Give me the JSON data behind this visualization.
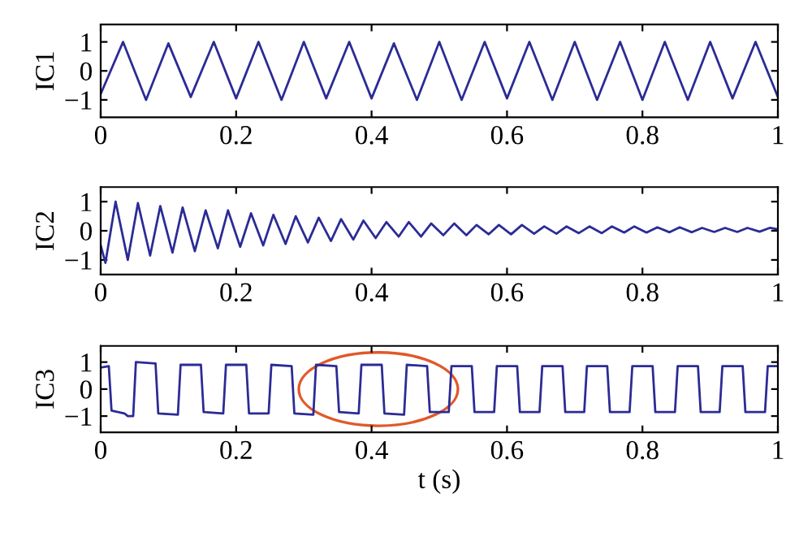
{
  "chart_data": [
    {
      "type": "line",
      "ylabel": "IC1",
      "xlim": [
        0,
        1
      ],
      "ylim": [
        -1.6,
        1.6
      ],
      "xticks": [
        0,
        0.2,
        0.4,
        0.6,
        0.8,
        1
      ],
      "yticks": [
        -1,
        0,
        1
      ],
      "grid": false,
      "line_style": "solid",
      "series": [
        {
          "color": "#2b2b96",
          "x": [
            0,
            0.033,
            0.067,
            0.1,
            0.133,
            0.167,
            0.2,
            0.233,
            0.267,
            0.3,
            0.333,
            0.367,
            0.4,
            0.433,
            0.467,
            0.5,
            0.533,
            0.567,
            0.6,
            0.633,
            0.667,
            0.7,
            0.733,
            0.767,
            0.8,
            0.833,
            0.867,
            0.9,
            0.933,
            0.967,
            1.0
          ],
          "values": [
            -0.8,
            1.0,
            -1.0,
            0.95,
            -0.9,
            1.0,
            -0.95,
            1.0,
            -1.0,
            1.0,
            -0.95,
            1.0,
            -0.95,
            0.95,
            -1.0,
            1.0,
            -1.0,
            1.0,
            -0.95,
            1.0,
            -1.0,
            1.0,
            -1.0,
            1.0,
            -1.0,
            1.0,
            -1.0,
            1.0,
            -0.95,
            1.0,
            -0.9
          ]
        }
      ]
    },
    {
      "type": "line",
      "ylabel": "IC2",
      "xlim": [
        0,
        1
      ],
      "ylim": [
        -1.5,
        1.5
      ],
      "xticks": [
        0,
        0.2,
        0.4,
        0.6,
        0.8,
        1
      ],
      "yticks": [
        -1,
        0,
        1
      ],
      "grid": false,
      "line_style": "solid",
      "series": [
        {
          "color": "#2b2b96",
          "x": [
            0,
            0.007,
            0.022,
            0.04,
            0.055,
            0.073,
            0.088,
            0.106,
            0.121,
            0.139,
            0.155,
            0.173,
            0.188,
            0.206,
            0.222,
            0.24,
            0.255,
            0.273,
            0.288,
            0.306,
            0.322,
            0.34,
            0.355,
            0.373,
            0.388,
            0.406,
            0.422,
            0.44,
            0.455,
            0.473,
            0.488,
            0.506,
            0.522,
            0.54,
            0.555,
            0.573,
            0.588,
            0.606,
            0.622,
            0.64,
            0.655,
            0.673,
            0.688,
            0.706,
            0.722,
            0.74,
            0.755,
            0.773,
            0.788,
            0.806,
            0.822,
            0.84,
            0.855,
            0.873,
            0.888,
            0.906,
            0.922,
            0.94,
            0.955,
            0.973,
            0.988,
            1.0
          ],
          "values": [
            -0.5,
            -1.1,
            1.0,
            -1.0,
            0.95,
            -0.85,
            0.85,
            -0.75,
            0.8,
            -0.7,
            0.7,
            -0.6,
            0.7,
            -0.55,
            0.6,
            -0.5,
            0.55,
            -0.45,
            0.5,
            -0.4,
            0.45,
            -0.35,
            0.4,
            -0.3,
            0.35,
            -0.25,
            0.3,
            -0.2,
            0.3,
            -0.2,
            0.25,
            -0.15,
            0.25,
            -0.15,
            0.2,
            -0.12,
            0.2,
            -0.12,
            0.2,
            -0.1,
            0.15,
            -0.1,
            0.15,
            -0.08,
            0.15,
            -0.08,
            0.15,
            -0.06,
            0.15,
            -0.06,
            0.12,
            -0.05,
            0.12,
            -0.05,
            0.1,
            -0.04,
            0.1,
            -0.04,
            0.1,
            -0.03,
            0.1,
            0.05
          ]
        }
      ]
    },
    {
      "type": "line",
      "ylabel": "IC3",
      "xlabel": "t (s)",
      "xlim": [
        0,
        1
      ],
      "ylim": [
        -1.6,
        1.6
      ],
      "xticks": [
        0,
        0.2,
        0.4,
        0.6,
        0.8,
        1
      ],
      "yticks": [
        -1,
        0,
        1
      ],
      "grid": false,
      "line_style": "solid",
      "series": [
        {
          "color": "#2b2b96",
          "x": [
            0,
            0.012,
            0.016,
            0.035,
            0.04,
            0.048,
            0.052,
            0.081,
            0.085,
            0.114,
            0.118,
            0.148,
            0.152,
            0.181,
            0.185,
            0.215,
            0.219,
            0.248,
            0.252,
            0.282,
            0.286,
            0.314,
            0.318,
            0.348,
            0.352,
            0.381,
            0.385,
            0.415,
            0.419,
            0.448,
            0.452,
            0.482,
            0.486,
            0.514,
            0.518,
            0.548,
            0.552,
            0.581,
            0.585,
            0.615,
            0.619,
            0.648,
            0.652,
            0.682,
            0.686,
            0.714,
            0.718,
            0.748,
            0.752,
            0.781,
            0.785,
            0.815,
            0.819,
            0.848,
            0.852,
            0.882,
            0.886,
            0.914,
            0.918,
            0.948,
            0.952,
            0.981,
            0.985,
            1.0
          ],
          "values": [
            0.8,
            0.85,
            -0.8,
            -0.9,
            -1.0,
            -1.0,
            1.0,
            0.95,
            -0.9,
            -0.95,
            0.9,
            0.9,
            -0.85,
            -0.9,
            0.9,
            0.9,
            -0.9,
            -0.9,
            0.9,
            0.85,
            -0.9,
            -0.95,
            0.9,
            0.85,
            -0.85,
            -0.9,
            0.9,
            0.9,
            -0.9,
            -0.95,
            0.9,
            0.85,
            -0.85,
            -0.85,
            0.85,
            0.85,
            -0.85,
            -0.85,
            0.85,
            0.85,
            -0.85,
            -0.85,
            0.85,
            0.85,
            -0.85,
            -0.85,
            0.85,
            0.85,
            -0.85,
            -0.85,
            0.85,
            0.85,
            -0.85,
            -0.85,
            0.85,
            0.85,
            -0.85,
            -0.85,
            0.85,
            0.85,
            -0.85,
            -0.85,
            0.85,
            0.85
          ]
        }
      ]
    }
  ]
}
